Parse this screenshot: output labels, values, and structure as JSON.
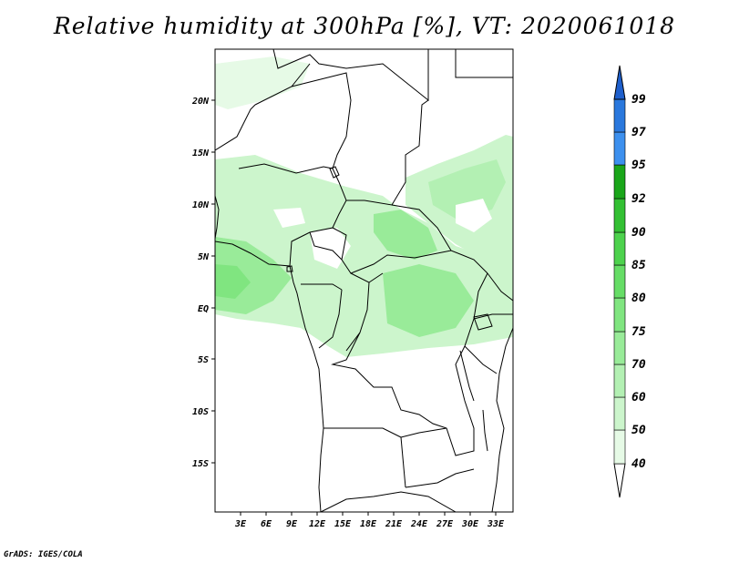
{
  "title": "Relative humidity at 300hPa [%], VT: 2020061018",
  "credit": "GrADS: IGES/COLA",
  "map": {
    "lon_range": [
      0,
      35
    ],
    "lat_range": [
      -20,
      25
    ],
    "lon_ticks": [
      "3E",
      "6E",
      "9E",
      "12E",
      "15E",
      "18E",
      "21E",
      "24E",
      "27E",
      "30E",
      "33E"
    ],
    "lat_ticks": [
      "20N",
      "15N",
      "10N",
      "5N",
      "EQ",
      "5S",
      "10S",
      "15S"
    ]
  },
  "colorbar": {
    "levels": [
      "40",
      "50",
      "60",
      "70",
      "75",
      "80",
      "85",
      "90",
      "92",
      "95",
      "97",
      "99"
    ],
    "colors": [
      "#e6fae6",
      "#ccf5cc",
      "#b3f0b3",
      "#99eb99",
      "#80e580",
      "#66dd66",
      "#4dd24d",
      "#33c033",
      "#1aa61a",
      "#3d90ee",
      "#2a78dd",
      "#1e5fcc"
    ]
  }
}
